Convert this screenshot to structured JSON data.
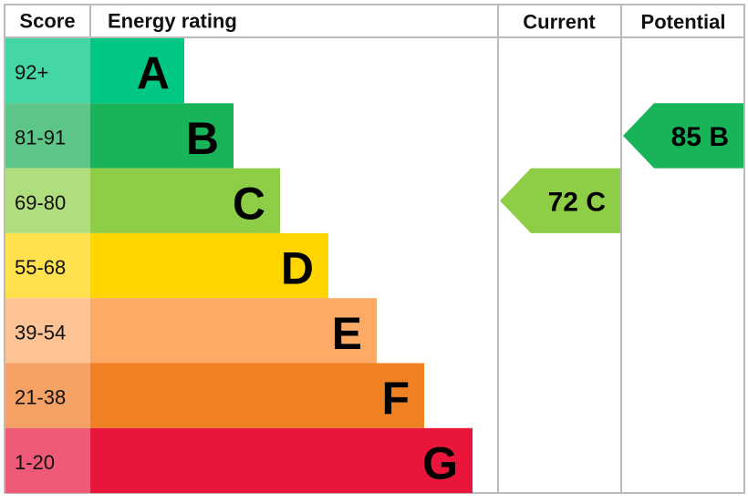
{
  "header": {
    "score": "Score",
    "energy_rating": "Energy rating",
    "current": "Current",
    "potential": "Potential"
  },
  "bands": [
    {
      "score": "92+",
      "rating": "A",
      "color": "#00c781",
      "score_color": "#45d6a5"
    },
    {
      "score": "81-91",
      "rating": "B",
      "color": "#19b459",
      "score_color": "#5dc587"
    },
    {
      "score": "69-80",
      "rating": "C",
      "color": "#8dce46",
      "score_color": "#b0dd7e"
    },
    {
      "score": "55-68",
      "rating": "D",
      "color": "#ffd500",
      "score_color": "#ffe14d"
    },
    {
      "score": "39-54",
      "rating": "E",
      "color": "#fcaa65",
      "score_color": "#fdc394"
    },
    {
      "score": "21-38",
      "rating": "F",
      "color": "#ef8023",
      "score_color": "#f3a165"
    },
    {
      "score": "1-20",
      "rating": "G",
      "color": "#e9153b",
      "score_color": "#ef5a78"
    }
  ],
  "current": {
    "score": 72,
    "rating": "C"
  },
  "potential": {
    "score": 85,
    "rating": "B"
  }
}
